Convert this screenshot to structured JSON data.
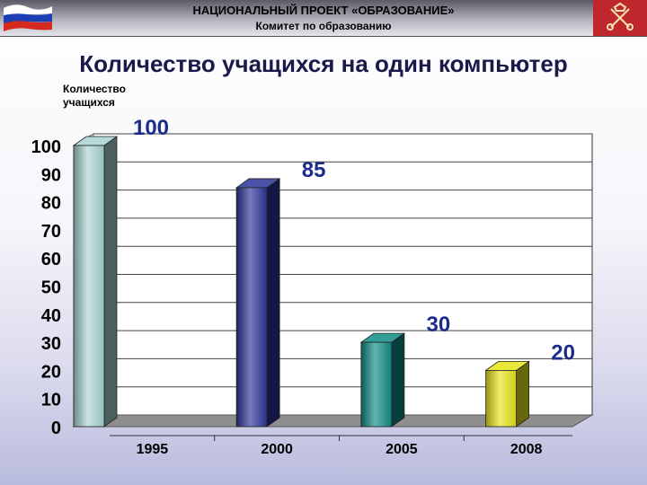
{
  "header": {
    "line1": "НАЦИОНАЛЬНЫЙ ПРОЕКТ «ОБРАЗОВАНИЕ»",
    "line2": "Комитет по образованию",
    "flag_colors": [
      "#ffffff",
      "#1c3fb5",
      "#d52b1e"
    ],
    "emblem_color": "#c0272d",
    "emblem_icon": "st-petersburg-coat-of-arms-icon"
  },
  "chart_data": {
    "type": "bar",
    "title": "Количество учащихся на один компьютер",
    "ylabel": "Количество учащихся",
    "xlabel": "",
    "categories": [
      "1995",
      "2000",
      "2005",
      "2008"
    ],
    "values": [
      100,
      85,
      30,
      20
    ],
    "data_labels": [
      "100",
      "85",
      "30",
      "20"
    ],
    "ylim": [
      0,
      100
    ],
    "yticks": [
      "0",
      "10",
      "20",
      "30",
      "40",
      "50",
      "60",
      "70",
      "80",
      "90",
      "100"
    ],
    "grid": true,
    "style": "3d",
    "colors": [
      "#a9d4d3",
      "#2b3499",
      "#0f8c86",
      "#e8e41a"
    ],
    "label_color": "#1b2d8a"
  }
}
